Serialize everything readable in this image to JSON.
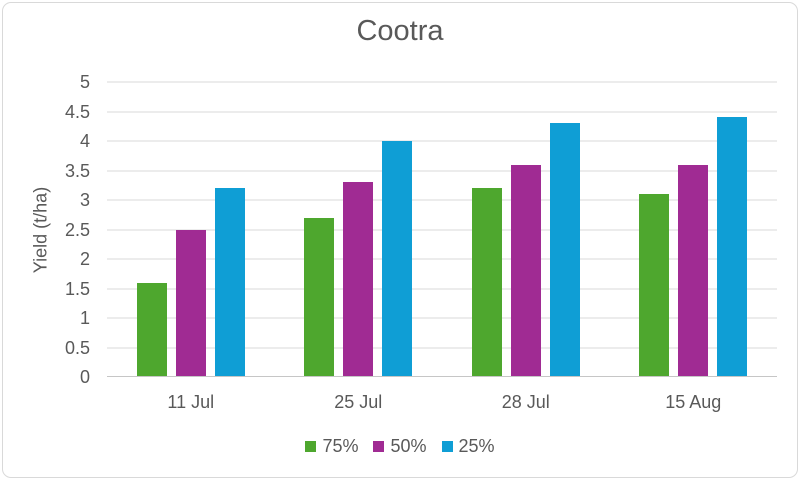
{
  "title": "Cootra",
  "chart_data": {
    "type": "bar",
    "title": "Cootra",
    "categories": [
      "11 Jul",
      "25 Jul",
      "28 Jul",
      "15 Aug"
    ],
    "series": [
      {
        "name": "75%",
        "color": "#4EA72E",
        "values": [
          1.6,
          2.7,
          3.2,
          3.1
        ]
      },
      {
        "name": "50%",
        "color": "#A02B93",
        "values": [
          2.5,
          3.3,
          3.6,
          3.6
        ]
      },
      {
        "name": "25%",
        "color": "#0F9ED5",
        "values": [
          3.2,
          4.0,
          4.3,
          4.4
        ]
      }
    ],
    "xlabel": "",
    "ylabel": "Yield (t/ha)",
    "ylim": [
      0,
      5
    ],
    "y_ticks": [
      "5",
      "4.5",
      "4",
      "3.5",
      "3",
      "2.5",
      "2",
      "1.5",
      "1",
      "0.5",
      "0"
    ],
    "grid": true,
    "legend_position": "bottom"
  },
  "style": {
    "text_color": "#595959",
    "gridline_color": "#DADADA",
    "axis_line_color": "#C6C6C6",
    "frame_border_color": "#D9D9D9",
    "background_color": "#FFFFFF"
  }
}
